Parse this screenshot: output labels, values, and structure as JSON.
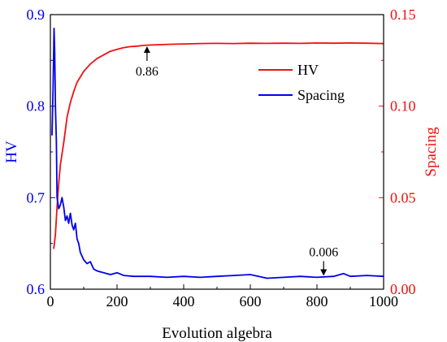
{
  "chart_data": {
    "type": "line",
    "xlabel": "Evolution algebra",
    "ylabel_left": "HV",
    "ylabel_right": "Spacing",
    "xlim": [
      0,
      1000
    ],
    "ylim_left": [
      0.6,
      0.9
    ],
    "ylim_right": [
      0,
      0.15
    ],
    "xticks": [
      "0",
      "200",
      "400",
      "600",
      "800",
      "1000"
    ],
    "yticks_left": [
      "0.6",
      "0.7",
      "0.8",
      "0.9"
    ],
    "yticks_right": [
      "0.00",
      "0.05",
      "0.10",
      "0.15"
    ],
    "grid": false,
    "legend_position": "upper-right",
    "series": [
      {
        "name": "HV",
        "axis": "right",
        "color": "#ee1111",
        "x": [
          10,
          15,
          20,
          25,
          30,
          40,
          50,
          60,
          70,
          80,
          90,
          100,
          120,
          140,
          160,
          180,
          200,
          220,
          240,
          260,
          280,
          300,
          330,
          360,
          400,
          450,
          500,
          550,
          600,
          650,
          700,
          750,
          800,
          850,
          900,
          950,
          1000
        ],
        "values": [
          0.022,
          0.03,
          0.045,
          0.058,
          0.068,
          0.08,
          0.094,
          0.102,
          0.108,
          0.113,
          0.116,
          0.119,
          0.123,
          0.126,
          0.128,
          0.13,
          0.131,
          0.132,
          0.1325,
          0.1328,
          0.1332,
          0.1334,
          0.1336,
          0.1338,
          0.134,
          0.1342,
          0.1343,
          0.1342,
          0.1344,
          0.1343,
          0.1344,
          0.1343,
          0.1345,
          0.1344,
          0.1345,
          0.1344,
          0.1342
        ]
      },
      {
        "name": "Spacing",
        "axis": "left",
        "color": "#0000ee",
        "x": [
          5,
          8,
          11,
          13,
          15,
          18,
          20,
          25,
          30,
          35,
          40,
          45,
          50,
          55,
          60,
          65,
          70,
          75,
          80,
          85,
          90,
          100,
          110,
          120,
          130,
          140,
          160,
          180,
          200,
          220,
          250,
          300,
          350,
          400,
          450,
          500,
          550,
          600,
          650,
          700,
          750,
          800,
          850,
          880,
          900,
          950,
          1000
        ],
        "values": [
          0.768,
          0.82,
          0.885,
          0.86,
          0.8,
          0.76,
          0.7,
          0.688,
          0.692,
          0.7,
          0.69,
          0.675,
          0.68,
          0.672,
          0.683,
          0.67,
          0.665,
          0.672,
          0.655,
          0.65,
          0.64,
          0.632,
          0.628,
          0.63,
          0.622,
          0.62,
          0.618,
          0.616,
          0.618,
          0.615,
          0.614,
          0.614,
          0.613,
          0.614,
          0.613,
          0.614,
          0.615,
          0.616,
          0.612,
          0.613,
          0.614,
          0.613,
          0.614,
          0.617,
          0.614,
          0.615,
          0.614
        ]
      }
    ],
    "annotations": [
      {
        "text": "0.86",
        "series": "HV",
        "x": 290,
        "y": 0.1336
      },
      {
        "text": "0.006",
        "series": "Spacing",
        "x": 820,
        "y": 0.612
      }
    ]
  }
}
